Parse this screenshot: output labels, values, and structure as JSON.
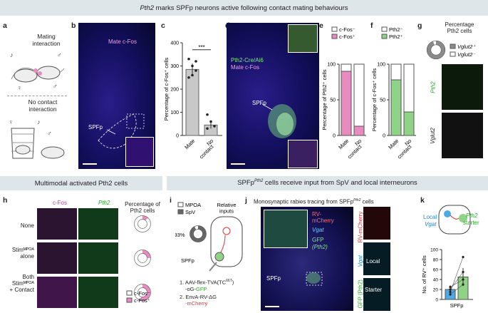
{
  "header_top": {
    "gene": "Pth2",
    "rest": " marks SPFp neurons active following contact mating behaviours"
  },
  "header_left": "Multimodal activated Pth2 cells",
  "header_right": {
    "pre": "SPFp",
    "sup": "Pth2",
    "post": " cells receive input from SpV and local interneurons"
  },
  "panel_letters": [
    "a",
    "b",
    "c",
    "d",
    "e",
    "f",
    "g",
    "h",
    "i",
    "j",
    "k"
  ],
  "panel_a": {
    "top_label": "Mating\ninteraction",
    "bottom_label": "No contact\ninteraction"
  },
  "panel_b": {
    "title": "Mate c-Fos",
    "region": "SPFp"
  },
  "panel_c": {
    "ylabel": "Percentage of c-Fos⁺ cells",
    "significance": "***",
    "chart_data": {
      "type": "bar",
      "categories": [
        "Mate",
        "No\ncontact"
      ],
      "values": [
        285,
        45
      ],
      "errors": [
        25,
        15
      ],
      "ylim": [
        0,
        400
      ],
      "yticks": [
        0,
        100,
        200,
        300,
        400
      ],
      "points": [
        [
          250,
          300,
          320,
          330,
          260,
          280
        ],
        [
          30,
          60,
          40,
          90
        ]
      ],
      "color": "#c8c8c8"
    }
  },
  "panel_d": {
    "title_line1": "Pth2-Cre/Ai6",
    "title_line2": "Mate c-Fos",
    "region": "SPFp"
  },
  "panel_e": {
    "ylabel": "Percentage of Pth2⁺ cells",
    "legend": [
      "c-Fos⁻",
      "c-Fos⁺"
    ],
    "chart_data": {
      "type": "bar",
      "stacked": true,
      "categories": [
        "Mate",
        "No\ncontact"
      ],
      "series": [
        {
          "name": "c-Fos⁺",
          "values": [
            90,
            13
          ],
          "color": "#e88cbf"
        },
        {
          "name": "c-Fos⁻",
          "values": [
            10,
            87
          ],
          "color": "#ffffff"
        }
      ],
      "ylim": [
        0,
        100
      ],
      "yticks": [
        0,
        50,
        100
      ]
    }
  },
  "panel_f": {
    "ylabel": "Percentage of c-Fos⁺ cells",
    "legend": [
      "Pth2⁻",
      "Pth2⁺"
    ],
    "chart_data": {
      "type": "bar",
      "stacked": true,
      "categories": [
        "Mate",
        "No\ncontact"
      ],
      "series": [
        {
          "name": "Pth2⁺",
          "values": [
            78,
            33
          ],
          "color": "#8fd486"
        },
        {
          "name": "Pth2⁻",
          "values": [
            22,
            67
          ],
          "color": "#ffffff"
        }
      ],
      "ylim": [
        0,
        100
      ],
      "yticks": [
        0,
        50,
        100
      ]
    }
  },
  "panel_g": {
    "title": "Percentage\nPth2 cells",
    "legend": [
      "Vglut2⁺",
      "Vglut2⁻"
    ],
    "chart_data": {
      "type": "pie",
      "donut": true,
      "values": [
        95,
        5
      ],
      "labels": [
        "Vglut2⁺",
        "Vglut2⁻"
      ],
      "colors": [
        "#8a8a8a",
        "#ffffff"
      ]
    },
    "image_labels": [
      "Pth2",
      "Vglut2"
    ]
  },
  "panel_h": {
    "col_labels": [
      "c-Fos",
      "Pth2"
    ],
    "row_labels": [
      "None",
      "Stimᴹᴾᴼᴬ\nalone",
      "Both\nStimᴹᴾᴼᴬ\n+ Contact"
    ],
    "donut_title": "Percentage of\nPth2 cells",
    "legend": [
      "c-Fos⁻",
      "c-Fos⁺"
    ],
    "chart_data": [
      {
        "type": "pie",
        "donut": true,
        "values": [
          12,
          88
        ],
        "labels": [
          "c-Fos⁺",
          "c-Fos⁻"
        ]
      },
      {
        "type": "pie",
        "donut": true,
        "values": [
          25,
          75
        ],
        "labels": [
          "c-Fos⁺",
          "c-Fos⁻"
        ]
      },
      {
        "type": "pie",
        "donut": true,
        "values": [
          55,
          45
        ],
        "labels": [
          "c-Fos⁺",
          "c-Fos⁻"
        ]
      }
    ]
  },
  "panel_i": {
    "legend": [
      "MPOA",
      "SpV"
    ],
    "percent": "93%",
    "relative": "Relative\ninputs",
    "node": "SPFp",
    "chart_data": {
      "type": "pie",
      "donut": true,
      "values": [
        93,
        7
      ],
      "labels": [
        "SpV",
        "MPOA"
      ]
    },
    "step1": {
      "pre": "1. AAV-flex-TVA(TC",
      "sup": "66T",
      "post": ")",
      "line2a": "-oG-",
      "gfp": "GFP"
    },
    "step2": {
      "pre": "2. EnvA-RV-ΔG",
      "line2": "-mCherry"
    }
  },
  "panel_j": {
    "title": {
      "pre": "Monosynaptic rabies tracing from SPFp",
      "sup": "Pth2",
      "post": " cells"
    },
    "labels": {
      "rv": "RV-\nmCherry",
      "vgat": "Vgat",
      "gfp": "GFP",
      "pth2": "(Pth2)",
      "region": "SPFp",
      "local": "Local",
      "starter": "Starter"
    },
    "side_labels": [
      "RV-mCherry",
      "Vgat",
      "GFP (Pth2)"
    ]
  },
  "panel_k": {
    "schematic": {
      "local": "Local",
      "vgat": "Vgat",
      "pth2": "Pth2",
      "starter": "starter"
    },
    "ylabel": "No. of RV⁺ cells",
    "xlabel": "SPFp",
    "chart_data": {
      "type": "bar",
      "categories": [
        "Vgat",
        "Pth2"
      ],
      "values": [
        20,
        45
      ],
      "errors": [
        8,
        18
      ],
      "ylim": [
        0,
        100
      ],
      "yticks": [
        0,
        20,
        40,
        60,
        80,
        100
      ],
      "colors": [
        "#4fa9e3",
        "#8fd486"
      ],
      "pairs": [
        [
          10,
          30
        ],
        [
          15,
          85
        ],
        [
          25,
          40
        ],
        [
          20,
          55
        ]
      ]
    }
  }
}
